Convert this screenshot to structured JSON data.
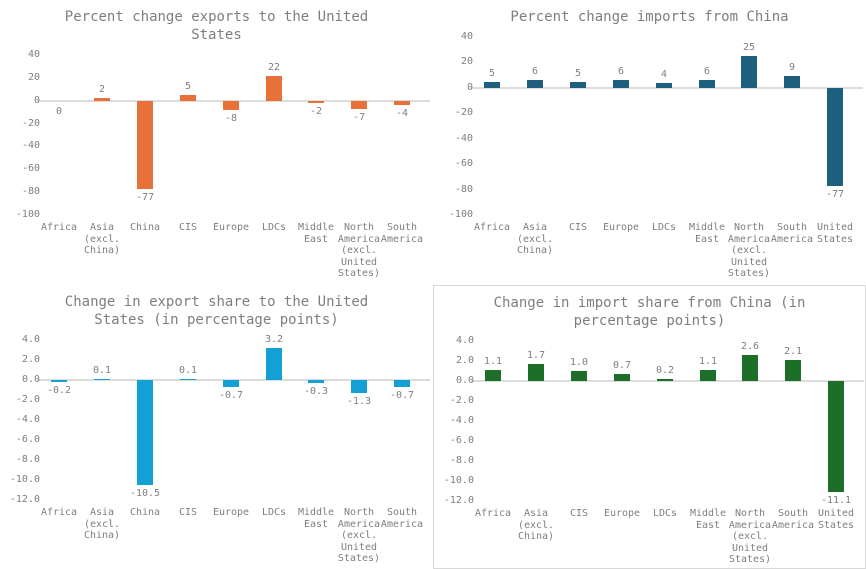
{
  "styles": {
    "background": "#FFFFFF",
    "text_color": "#7E7E7E",
    "axis_color": "#DCDCDC",
    "border_color": "#D8D8D8"
  },
  "chart_data": [
    {
      "type": "bar",
      "title": "Percent change exports to the United States",
      "title_lines": [
        "Percent change exports to the United",
        "States"
      ],
      "categories": [
        "Africa",
        "Asia (excl. China)",
        "China",
        "CIS",
        "Europe",
        "LDCs",
        "Middle East",
        "North America (excl. United States)",
        "South America"
      ],
      "categories_lines": [
        [
          "Africa"
        ],
        [
          "Asia",
          "(excl.",
          "China)"
        ],
        [
          "China"
        ],
        [
          "CIS"
        ],
        [
          "Europe"
        ],
        [
          "LDCs"
        ],
        [
          "Middle",
          "East"
        ],
        [
          "North",
          "America",
          "(excl.",
          "United",
          "States)"
        ],
        [
          "South",
          "America"
        ]
      ],
      "values": [
        0,
        2,
        -77,
        5,
        -8,
        22,
        -2,
        -7,
        -4
      ],
      "value_labels": [
        "0",
        "2",
        "-77",
        "5",
        "-8",
        "22",
        "-2",
        "-7",
        "-4"
      ],
      "yticks": [
        "40",
        "20",
        "0",
        "-20",
        "-40",
        "-60",
        "-80",
        "-100"
      ],
      "ylim": [
        -100,
        40
      ],
      "xlabel": "",
      "ylabel": "",
      "grid": "off",
      "legend": "none",
      "bar_color": "#E8713A",
      "bordered": false
    },
    {
      "type": "bar",
      "title": "Percent change imports from China",
      "title_lines": [
        "Percent change imports from China"
      ],
      "categories": [
        "Africa",
        "Asia (excl. China)",
        "CIS",
        "Europe",
        "LDCs",
        "Middle East",
        "North America (excl. United States)",
        "South America",
        "United States"
      ],
      "categories_lines": [
        [
          "Africa"
        ],
        [
          "Asia",
          "(excl.",
          "China)"
        ],
        [
          "CIS"
        ],
        [
          "Europe"
        ],
        [
          "LDCs"
        ],
        [
          "Middle",
          "East"
        ],
        [
          "North",
          "America",
          "(excl.",
          "United",
          "States)"
        ],
        [
          "South",
          "America"
        ],
        [
          "United",
          "States"
        ]
      ],
      "values": [
        5,
        6,
        5,
        6,
        4,
        6,
        25,
        9,
        -77
      ],
      "value_labels": [
        "5",
        "6",
        "5",
        "6",
        "4",
        "6",
        "25",
        "9",
        "-77"
      ],
      "yticks": [
        "40",
        "20",
        "0",
        "-20",
        "-40",
        "-60",
        "-80",
        "-100"
      ],
      "ylim": [
        -100,
        40
      ],
      "xlabel": "",
      "ylabel": "",
      "grid": "off",
      "legend": "none",
      "bar_color": "#1D5F7D",
      "bordered": false
    },
    {
      "type": "bar",
      "title": "Change in export share to the United States (in percentage points)",
      "title_lines": [
        "Change in export share to the United",
        "States (in percentage points)"
      ],
      "categories": [
        "Africa",
        "Asia (excl. China)",
        "China",
        "CIS",
        "Europe",
        "LDCs",
        "Middle East",
        "North America (excl. United States)",
        "South America"
      ],
      "categories_lines": [
        [
          "Africa"
        ],
        [
          "Asia",
          "(excl.",
          "China)"
        ],
        [
          "China"
        ],
        [
          "CIS"
        ],
        [
          "Europe"
        ],
        [
          "LDCs"
        ],
        [
          "Middle",
          "East"
        ],
        [
          "North",
          "America",
          "(excl.",
          "United",
          "States)"
        ],
        [
          "South",
          "America"
        ]
      ],
      "values": [
        -0.2,
        0.1,
        -10.5,
        0.1,
        -0.7,
        3.2,
        -0.3,
        -1.3,
        -0.7
      ],
      "value_labels": [
        "-0.2",
        "0.1",
        "-10.5",
        "0.1",
        "-0.7",
        "3.2",
        "-0.3",
        "-1.3",
        "-0.7"
      ],
      "yticks": [
        "4.0",
        "2.0",
        "0.0",
        "-2.0",
        "-4.0",
        "-6.0",
        "-8.0",
        "-10.0",
        "-12.0"
      ],
      "ylim": [
        -12,
        4
      ],
      "xlabel": "",
      "ylabel": "",
      "grid": "off",
      "legend": "none",
      "bar_color": "#12A0D5",
      "bordered": false
    },
    {
      "type": "bar",
      "title": "Change in import share from China (in percentage points)",
      "title_lines": [
        "Change in import share from China (in",
        "percentage points)"
      ],
      "categories": [
        "Africa",
        "Asia (excl. China)",
        "CIS",
        "Europe",
        "LDCs",
        "Middle East",
        "North America (excl. United States)",
        "South America",
        "United States"
      ],
      "categories_lines": [
        [
          "Africa"
        ],
        [
          "Asia",
          "(excl.",
          "China)"
        ],
        [
          "CIS"
        ],
        [
          "Europe"
        ],
        [
          "LDCs"
        ],
        [
          "Middle",
          "East"
        ],
        [
          "North",
          "America",
          "(excl.",
          "United",
          "States)"
        ],
        [
          "South",
          "America"
        ],
        [
          "United",
          "States"
        ]
      ],
      "values": [
        1.1,
        1.7,
        1.0,
        0.7,
        0.2,
        1.1,
        2.6,
        2.1,
        -11.1
      ],
      "value_labels": [
        "1.1",
        "1.7",
        "1.0",
        "0.7",
        "0.2",
        "1.1",
        "2.6",
        "2.1",
        "-11.1"
      ],
      "yticks": [
        "4.0",
        "2.0",
        "0.0",
        "-2.0",
        "-4.0",
        "-6.0",
        "-8.0",
        "-10.0",
        "-12.0"
      ],
      "ylim": [
        -12,
        4
      ],
      "xlabel": "",
      "ylabel": "",
      "grid": "off",
      "legend": "none",
      "bar_color": "#1C6E28",
      "bordered": true
    }
  ]
}
